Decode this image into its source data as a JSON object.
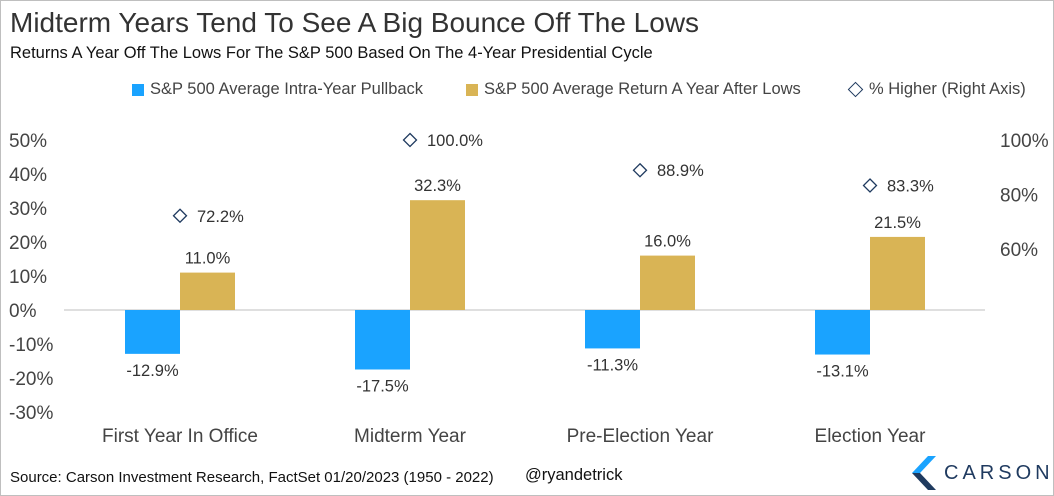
{
  "title": "Midterm Years Tend To See A Big Bounce Off The Lows",
  "subtitle": "Returns A Year Off The Lows For The S&P 500 Based On The 4-Year Presidential Cycle",
  "footer": {
    "source": "Source: Carson Investment Research, FactSet 01/20/2023 (1950 - 2022)",
    "handle": "@ryandetrick",
    "logo_text": "CARSON"
  },
  "colors": {
    "pullback": "#1aa3ff",
    "return": "#d9b455",
    "marker": "#1f3a5f",
    "logo": "#1f3a5f"
  },
  "chart_data": {
    "type": "bar",
    "categories": [
      "First Year In Office",
      "Midterm Year",
      "Pre-Election Year",
      "Election Year"
    ],
    "series": [
      {
        "name": "S&P 500 Average Intra-Year Pullback",
        "values": [
          -12.9,
          -17.5,
          -11.3,
          -13.1
        ],
        "labels": [
          "-12.9%",
          "-17.5%",
          "-11.3%",
          "-13.1%"
        ]
      },
      {
        "name": "S&P 500 Average Return A Year After Lows",
        "values": [
          11.0,
          32.3,
          16.0,
          21.5
        ],
        "labels": [
          "11.0%",
          "32.3%",
          "16.0%",
          "21.5%"
        ]
      },
      {
        "name": "% Higher (Right Axis)",
        "axis": "right",
        "marker": "diamond",
        "values": [
          72.2,
          100.0,
          88.9,
          83.3
        ],
        "labels": [
          "72.2%",
          "100.0%",
          "88.9%",
          "83.3%"
        ]
      }
    ],
    "left_axis": {
      "ylim": [
        -30,
        50
      ],
      "ticks": [
        50,
        40,
        30,
        20,
        10,
        0,
        -10,
        -20,
        -30
      ],
      "tick_labels": [
        "50%",
        "40%",
        "30%",
        "20%",
        "10%",
        "0%",
        "-10%",
        "-20%",
        "-30%"
      ]
    },
    "right_axis": {
      "ylim": [
        40,
        100
      ],
      "ticks": [
        100,
        80,
        60
      ],
      "tick_labels": [
        "100%",
        "80%",
        "60%"
      ]
    },
    "legend_position": "top",
    "grid": false
  }
}
